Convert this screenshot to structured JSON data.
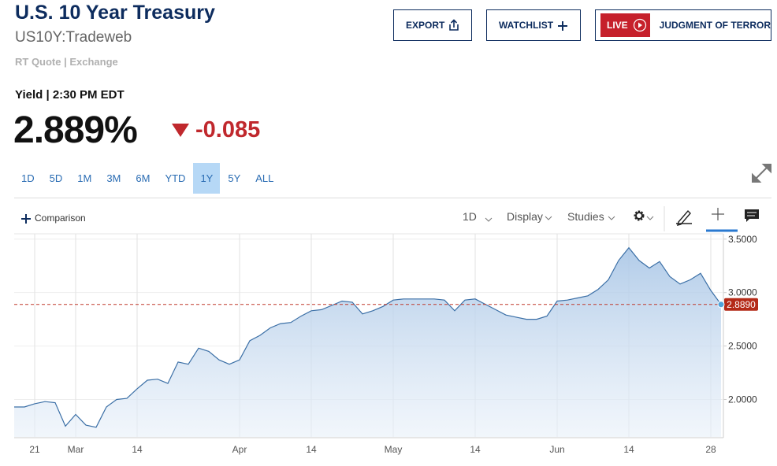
{
  "header": {
    "title": "U.S. 10 Year Treasury",
    "symbol": "US10Y:Tradeweb",
    "source": "RT Quote | Exchange"
  },
  "actions": {
    "export": "EXPORT",
    "watchlist": "WATCHLIST",
    "live": "LIVE",
    "program": "JUDGMENT OF TERROR"
  },
  "quote": {
    "label": "Yield | 2:30 PM EDT",
    "price": "2.889%",
    "change": "-0.085"
  },
  "ranges": {
    "options": [
      "1D",
      "5D",
      "1M",
      "3M",
      "6M",
      "YTD",
      "1Y",
      "5Y",
      "ALL"
    ],
    "selected": 6
  },
  "toolbar": {
    "comparison": "Comparison",
    "interval": "1D",
    "display": "Display",
    "studies": "Studies"
  },
  "chart_data": {
    "type": "line",
    "categories": [
      null,
      null,
      "21",
      null,
      null,
      null,
      "Mar",
      null,
      null,
      null,
      null,
      null,
      "14",
      null,
      null,
      null,
      null,
      null,
      null,
      null,
      null,
      null,
      "Apr",
      null,
      null,
      null,
      null,
      null,
      null,
      "14",
      null,
      null,
      null,
      null,
      null,
      null,
      null,
      "May",
      null,
      null,
      null,
      null,
      null,
      null,
      null,
      "14",
      null,
      null,
      null,
      null,
      null,
      null,
      null,
      "Jun",
      null,
      null,
      null,
      null,
      null,
      null,
      "14",
      null,
      null,
      null,
      null,
      null,
      null,
      null,
      "28",
      null
    ],
    "values": [
      1.93,
      1.93,
      1.96,
      1.98,
      1.97,
      1.75,
      1.86,
      1.76,
      1.74,
      1.93,
      2.0,
      2.01,
      2.1,
      2.18,
      2.19,
      2.15,
      2.35,
      2.33,
      2.48,
      2.45,
      2.37,
      2.33,
      2.37,
      2.55,
      2.6,
      2.67,
      2.71,
      2.72,
      2.78,
      2.83,
      2.84,
      2.88,
      2.92,
      2.91,
      2.8,
      2.83,
      2.87,
      2.93,
      2.94,
      2.94,
      2.94,
      2.94,
      2.93,
      2.83,
      2.93,
      2.94,
      2.89,
      2.84,
      2.79,
      2.77,
      2.75,
      2.75,
      2.78,
      2.92,
      2.93,
      2.95,
      2.97,
      3.03,
      3.12,
      3.3,
      3.42,
      3.3,
      3.23,
      3.29,
      3.15,
      3.08,
      3.12,
      3.18,
      3.02,
      2.889
    ],
    "color": "#3b6fa6",
    "ylim": [
      1.65,
      3.55
    ],
    "yticks": [
      {
        "value": 2.0,
        "label": "2.0000"
      },
      {
        "value": 2.5,
        "label": "2.5000"
      },
      {
        "value": 3.0,
        "label": "3.0000"
      },
      {
        "value": 3.5,
        "label": "3.5000"
      }
    ],
    "reference_line": {
      "value": 2.889,
      "label": "2.8890",
      "color": "#c0392b"
    },
    "grid": true
  }
}
